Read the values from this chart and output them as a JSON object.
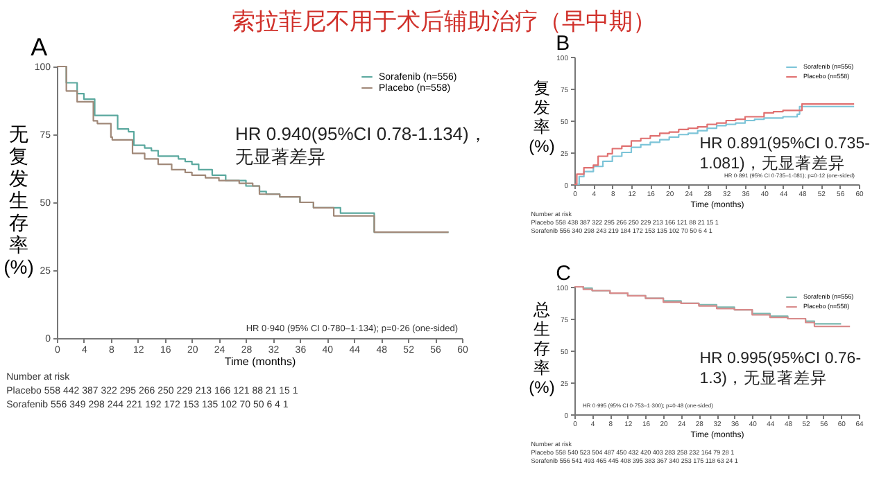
{
  "chart_data": [
    {
      "type": "other",
      "title": "索拉菲尼不用于术后辅助治疗（早中期）"
    },
    {
      "type": "step",
      "title": "A",
      "xlabel": "Time (months)",
      "ylabel": "无复发生存率(%)",
      "xlim": [
        0,
        60
      ],
      "xticks": [
        0,
        4,
        8,
        12,
        16,
        20,
        24,
        28,
        32,
        36,
        40,
        44,
        48,
        52,
        56,
        60
      ],
      "ylim": [
        0,
        100
      ],
      "yticks": [
        0,
        25,
        50,
        75,
        100
      ],
      "legend": "top right",
      "series": [
        {
          "name": "Sorafenib (n=556)",
          "color": "#5aa89e",
          "x": [
            0,
            1.4,
            3,
            4,
            5.6,
            9,
            10.6,
            11.4,
            13,
            14,
            15,
            18,
            19,
            20,
            21,
            23,
            25,
            28,
            30,
            31,
            33,
            36,
            38,
            42,
            47,
            47,
            58
          ],
          "values": [
            100,
            94,
            90,
            88,
            82,
            77,
            76,
            71,
            70,
            69,
            67,
            66,
            65,
            64,
            62,
            60,
            58,
            56,
            54,
            53,
            52,
            50,
            48,
            46,
            46,
            39,
            39
          ]
        },
        {
          "name": "Placebo (n=558)",
          "color": "#a08878",
          "x": [
            0,
            1.4,
            3,
            5.4,
            6,
            8,
            8.2,
            11.2,
            13,
            15,
            17,
            19,
            20,
            22,
            24,
            27,
            29,
            30,
            33,
            36,
            38,
            41,
            47,
            47,
            58
          ],
          "values": [
            100,
            91,
            87,
            80,
            79,
            74,
            73,
            68,
            66,
            64,
            62,
            61,
            60,
            59,
            58,
            57,
            56,
            53,
            52,
            50,
            48,
            45,
            45,
            39,
            39
          ]
        }
      ],
      "annotations": [
        "HR 0.940(95%CI 0.78-1.134)，",
        "无显著差异",
        "HR 0·940 (95% CI 0·780–1·134); p=0·26 (one-sided)",
        "Number at risk",
        "Placebo 558 442 387 322 295 266 250 229 213 166 121 88 21 15 1",
        "Sorafenib 556 349 298 244 221 192 172 153 135 102 70 50 6 4 1"
      ]
    },
    {
      "type": "step",
      "title": "B",
      "xlabel": "Time (months)",
      "ylabel": "复发率(%)",
      "xlim": [
        0,
        60
      ],
      "xticks": [
        0,
        4,
        8,
        12,
        16,
        20,
        24,
        28,
        32,
        36,
        40,
        44,
        48,
        52,
        56,
        60
      ],
      "ylim": [
        0,
        100
      ],
      "yticks": [
        0,
        25,
        50,
        75,
        100
      ],
      "legend": "top right",
      "series": [
        {
          "name": "Sorafenib (n=556)",
          "color": "#7cc4d8",
          "x": [
            0,
            1,
            2,
            4,
            6,
            8,
            10,
            12,
            14,
            16,
            18,
            20,
            22,
            24,
            26,
            28,
            30,
            32,
            34,
            36,
            38,
            40,
            44,
            47,
            47.5,
            59
          ],
          "values": [
            0,
            6,
            10,
            14,
            18,
            22,
            25,
            29,
            31,
            33,
            35,
            37,
            39,
            40,
            42,
            44,
            46,
            47,
            48,
            50,
            51,
            52,
            53,
            55,
            61,
            61
          ]
        },
        {
          "name": "Placebo (n=558)",
          "color": "#e07070",
          "x": [
            0,
            0.5,
            2,
            4,
            5,
            7,
            8,
            10,
            12,
            14,
            16,
            18,
            20,
            22,
            24,
            26,
            28,
            30,
            32,
            34,
            36,
            40,
            42,
            44,
            48,
            59
          ],
          "values": [
            0,
            8,
            13,
            15,
            22,
            24,
            28,
            30,
            34,
            36,
            38,
            40,
            41,
            43,
            44,
            45,
            47,
            48,
            50,
            51,
            53,
            56,
            57,
            58,
            63,
            63
          ]
        }
      ],
      "annotations": [
        "HR 0.891(95%CI 0.735-",
        "1.081)，无显著差异",
        "HR 0·891 (95% CI 0·735–1·081); p=0·12 (one-sided)",
        "Number at risk",
        "Placebo 558 438 387 322 295 266 250 229 213 166 121 88 21 15 1",
        "Sorafenib 556 340 298 243 219 184 172 153 135 102 70 50 6 4 1"
      ]
    },
    {
      "type": "step",
      "title": "C",
      "xlabel": "Time (months)",
      "ylabel": "总生存率(%)",
      "xlim": [
        0,
        64
      ],
      "xticks": [
        0,
        4,
        8,
        12,
        16,
        20,
        24,
        28,
        32,
        36,
        40,
        44,
        48,
        52,
        56,
        60,
        64
      ],
      "ylim": [
        0,
        100
      ],
      "yticks": [
        0,
        25,
        50,
        75,
        100
      ],
      "legend": "top right",
      "series": [
        {
          "name": "Sorafenib (n=556)",
          "color": "#7ab8b0",
          "x": [
            0,
            2,
            4,
            8,
            12,
            16,
            20,
            24,
            28,
            32,
            36,
            40,
            44,
            48,
            52,
            54,
            60
          ],
          "values": [
            100,
            99,
            97,
            95,
            93,
            91,
            89,
            87,
            86,
            84,
            82,
            79,
            77,
            75,
            73,
            71,
            71
          ]
        },
        {
          "name": "Placebo (n=558)",
          "color": "#d88a8a",
          "x": [
            0,
            2,
            4,
            8,
            12,
            16,
            20,
            24,
            28,
            32,
            36,
            40,
            44,
            48,
            52,
            54,
            62
          ],
          "values": [
            100,
            98,
            97,
            95,
            93,
            91,
            88,
            87,
            85,
            83,
            82,
            78,
            76,
            75,
            72,
            69,
            69
          ]
        }
      ],
      "annotations": [
        "HR 0.995(95%CI 0.76-",
        "1.3)，无显著差异",
        "HR 0·995 (95% CI 0·753–1·300); p=0·48 (one-sided)",
        "Number at risk",
        "Placebo 558 540 523 504 487 450 432 420 403 283 258 232 164 79 28 1",
        "Sorafenib 556 541 493 465 445 408 395 383 367 340 253 175 118 63 24 1"
      ]
    }
  ]
}
